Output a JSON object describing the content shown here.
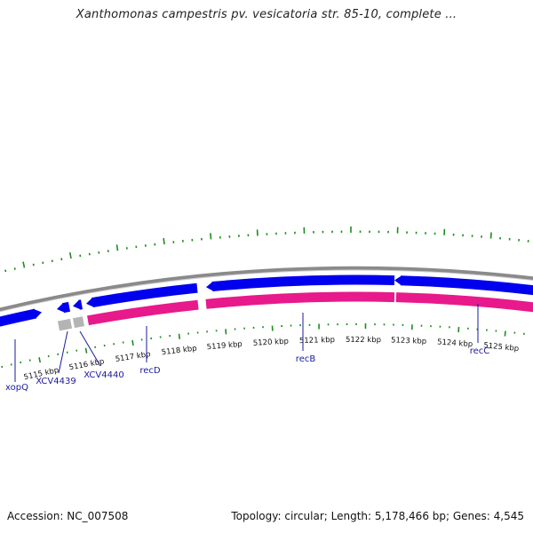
{
  "title": "Xanthomonas campestris pv. vesicatoria str. 85-10, complete ...",
  "colors": {
    "forward_gene": "#0000ee",
    "reverse_gene": "#e8198b",
    "pseudo_gene": "#b4b4b4",
    "backbone": "#8a8a8a",
    "gc_tick": "#1e8c1e",
    "label_line": "#1a1aa0"
  },
  "ruler": [
    "5115 kbp",
    "5116 kbp",
    "5117 kbp",
    "5118 kbp",
    "5119 kbp",
    "5120 kbp",
    "5121 kbp",
    "5122 kbp",
    "5123 kbp",
    "5124 kbp",
    "5125 kbp"
  ],
  "genes": [
    {
      "name": "xopQ"
    },
    {
      "name": "XCV4439"
    },
    {
      "name": "XCV4440"
    },
    {
      "name": "recD"
    },
    {
      "name": "recB"
    },
    {
      "name": "recC"
    }
  ],
  "footer": {
    "accession": "Accession: NC_007508",
    "summary": "Topology: circular; Length: 5,178,466 bp; Genes: 4,545"
  }
}
